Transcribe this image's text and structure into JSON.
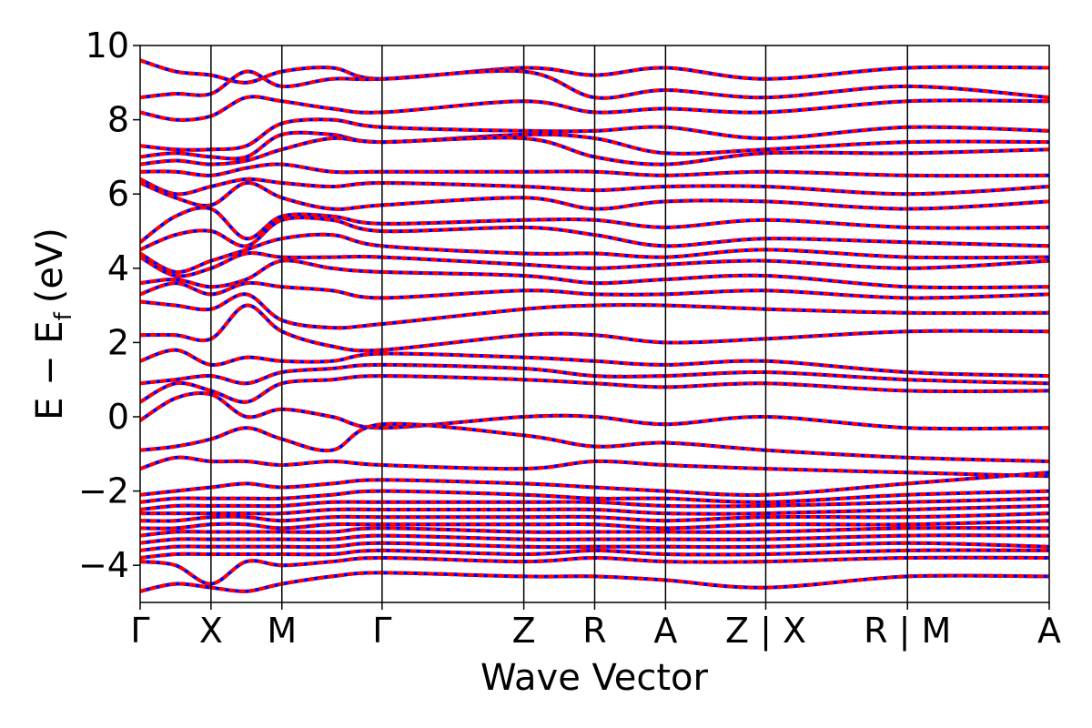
{
  "chart_data": {
    "type": "line",
    "xlabel": "Wave Vector",
    "ylabel_main": "E − E",
    "ylabel_sub": "f",
    "ylabel_unit": "(eV)",
    "ylim": [
      -5,
      10
    ],
    "yticks": [
      -4,
      -2,
      0,
      2,
      4,
      6,
      8,
      10
    ],
    "ytick_labels": [
      "−4",
      "−2",
      "0",
      "2",
      "4",
      "6",
      "8",
      "10"
    ],
    "kpoint_labels": [
      "Γ",
      "X",
      "M",
      "Γ",
      "Z",
      "R",
      "A",
      "Z | X",
      "R | M",
      "A"
    ],
    "kpoint_x": [
      0,
      0.5,
      1.0,
      1.707,
      2.707,
      3.207,
      3.707,
      4.414,
      5.414,
      6.414
    ],
    "segment_breaks": [
      4.414,
      5.414
    ],
    "xlim": [
      0,
      6.414
    ],
    "line_colors": {
      "dft": "#0000ff",
      "interp": "#ff0000"
    },
    "band_count": 60,
    "bands": [
      {
        "y": [
          9.6,
          9.3,
          9.2,
          9.0,
          9.3,
          9.4,
          9.1,
          9.4,
          9.2,
          9.4,
          9.1,
          9.4,
          9.4
        ]
      },
      {
        "y": [
          8.6,
          8.7,
          8.7,
          9.3,
          8.9,
          9.1,
          9.1,
          9.3,
          8.6,
          8.8,
          8.6,
          8.9,
          8.6
        ]
      },
      {
        "y": [
          8.2,
          8.0,
          8.1,
          8.6,
          8.5,
          8.3,
          8.2,
          8.5,
          8.2,
          8.3,
          8.2,
          8.5,
          8.5
        ]
      },
      {
        "y": [
          7.3,
          7.2,
          7.2,
          7.3,
          7.9,
          8.0,
          7.8,
          7.7,
          7.7,
          7.8,
          7.5,
          7.8,
          7.7
        ]
      },
      {
        "y": [
          7.0,
          7.1,
          7.0,
          7.0,
          7.6,
          7.6,
          7.4,
          7.6,
          7.5,
          7.1,
          7.2,
          7.4,
          7.4
        ]
      },
      {
        "y": [
          6.8,
          6.9,
          6.8,
          6.9,
          7.2,
          7.5,
          7.4,
          7.5,
          7.0,
          6.8,
          7.1,
          7.1,
          7.2
        ]
      },
      {
        "y": [
          6.6,
          6.6,
          6.5,
          6.7,
          6.8,
          6.6,
          6.6,
          6.6,
          6.6,
          6.5,
          6.6,
          6.5,
          6.5
        ]
      },
      {
        "y": [
          6.4,
          6.0,
          6.2,
          6.4,
          6.3,
          6.2,
          6.3,
          6.2,
          6.1,
          6.2,
          6.2,
          6.0,
          6.2
        ]
      },
      {
        "y": [
          6.3,
          5.9,
          5.7,
          6.3,
          5.9,
          5.6,
          5.7,
          5.9,
          5.6,
          5.8,
          5.8,
          5.6,
          5.8
        ]
      },
      {
        "y": [
          4.7,
          5.4,
          5.6,
          4.8,
          5.4,
          5.4,
          5.2,
          5.3,
          5.3,
          5.1,
          5.3,
          5.1,
          5.1
        ]
      },
      {
        "y": [
          4.5,
          4.9,
          5.0,
          4.6,
          5.3,
          5.3,
          5.0,
          5.1,
          4.9,
          4.6,
          4.8,
          4.7,
          4.6
        ]
      },
      {
        "y": [
          4.4,
          3.9,
          4.2,
          4.5,
          4.8,
          4.9,
          4.6,
          4.4,
          4.4,
          4.3,
          4.5,
          4.3,
          4.3
        ]
      },
      {
        "y": [
          4.3,
          3.8,
          4.0,
          4.4,
          4.3,
          4.3,
          4.3,
          4.1,
          4.0,
          4.1,
          4.2,
          4.0,
          4.2
        ]
      },
      {
        "y": [
          3.6,
          3.7,
          3.5,
          3.7,
          4.2,
          4.0,
          3.9,
          3.8,
          3.6,
          3.7,
          3.8,
          3.5,
          3.5
        ]
      },
      {
        "y": [
          3.3,
          3.6,
          3.3,
          3.6,
          3.5,
          3.4,
          3.2,
          3.4,
          3.3,
          3.3,
          3.4,
          3.2,
          3.3
        ]
      },
      {
        "y": [
          3.1,
          3.0,
          2.9,
          3.3,
          2.6,
          2.4,
          2.5,
          2.9,
          3.0,
          3.0,
          2.9,
          2.8,
          2.8
        ]
      },
      {
        "y": [
          2.2,
          2.2,
          2.1,
          3.0,
          2.3,
          1.9,
          1.8,
          2.2,
          2.2,
          2.0,
          2.1,
          2.3,
          2.3
        ]
      },
      {
        "y": [
          1.5,
          1.8,
          1.4,
          1.6,
          1.5,
          1.5,
          1.7,
          1.6,
          1.5,
          1.4,
          1.5,
          1.2,
          1.1
        ]
      },
      {
        "y": [
          0.9,
          1.0,
          1.1,
          0.9,
          1.2,
          1.3,
          1.4,
          1.3,
          1.1,
          1.1,
          1.2,
          1.0,
          0.9
        ]
      },
      {
        "y": [
          0.4,
          0.9,
          0.7,
          0.4,
          0.9,
          1.0,
          1.1,
          1.0,
          0.9,
          0.8,
          0.9,
          0.7,
          0.7
        ]
      },
      {
        "y": [
          -0.1,
          0.5,
          0.6,
          0.0,
          0.2,
          0.0,
          -0.3,
          0.0,
          0.0,
          -0.2,
          0.0,
          -0.3,
          -0.3
        ]
      },
      {
        "y": [
          -0.9,
          -0.8,
          -0.6,
          -0.3,
          -0.6,
          -0.9,
          -0.2,
          -0.5,
          -0.8,
          -0.7,
          -0.9,
          -1.1,
          -1.2
        ]
      },
      {
        "y": [
          -1.4,
          -1.1,
          -1.2,
          -1.2,
          -1.3,
          -1.2,
          -1.3,
          -1.4,
          -1.2,
          -1.3,
          -1.4,
          -1.5,
          -1.6
        ]
      },
      {
        "y": [
          -2.1,
          -2.0,
          -1.9,
          -1.8,
          -1.9,
          -1.8,
          -1.7,
          -1.8,
          -1.9,
          -2.0,
          -2.1,
          -1.8,
          -1.5
        ]
      },
      {
        "y": [
          -2.3,
          -2.2,
          -2.2,
          -2.2,
          -2.2,
          -2.1,
          -2.0,
          -2.1,
          -2.2,
          -2.2,
          -2.3,
          -2.1,
          -2.0
        ]
      },
      {
        "y": [
          -2.5,
          -2.4,
          -2.4,
          -2.4,
          -2.4,
          -2.3,
          -2.3,
          -2.3,
          -2.3,
          -2.4,
          -2.4,
          -2.3,
          -2.2
        ]
      },
      {
        "y": [
          -2.6,
          -2.6,
          -2.6,
          -2.6,
          -2.6,
          -2.5,
          -2.5,
          -2.5,
          -2.5,
          -2.6,
          -2.6,
          -2.5,
          -2.4
        ]
      },
      {
        "y": [
          -2.8,
          -2.8,
          -2.7,
          -2.7,
          -2.8,
          -2.7,
          -2.7,
          -2.7,
          -2.7,
          -2.8,
          -2.7,
          -2.7,
          -2.6
        ]
      },
      {
        "y": [
          -3.0,
          -3.0,
          -2.9,
          -2.9,
          -3.0,
          -2.9,
          -2.9,
          -2.9,
          -2.9,
          -3.0,
          -2.9,
          -2.9,
          -2.8
        ]
      },
      {
        "y": [
          -3.2,
          -3.1,
          -3.1,
          -3.1,
          -3.1,
          -3.1,
          -3.0,
          -3.1,
          -3.1,
          -3.1,
          -3.1,
          -3.0,
          -3.0
        ]
      },
      {
        "y": [
          -3.4,
          -3.3,
          -3.3,
          -3.3,
          -3.3,
          -3.3,
          -3.2,
          -3.3,
          -3.3,
          -3.3,
          -3.3,
          -3.2,
          -3.2
        ]
      },
      {
        "y": [
          -3.6,
          -3.5,
          -3.5,
          -3.5,
          -3.5,
          -3.5,
          -3.4,
          -3.5,
          -3.5,
          -3.5,
          -3.5,
          -3.4,
          -3.5
        ]
      },
      {
        "y": [
          -3.8,
          -3.7,
          -3.7,
          -3.7,
          -3.7,
          -3.7,
          -3.6,
          -3.7,
          -3.6,
          -3.7,
          -3.7,
          -3.6,
          -3.6
        ]
      },
      {
        "y": [
          -3.9,
          -4.0,
          -4.5,
          -3.9,
          -4.0,
          -3.9,
          -3.8,
          -3.9,
          -3.8,
          -3.9,
          -3.9,
          -3.8,
          -3.8
        ]
      },
      {
        "y": [
          -4.7,
          -4.5,
          -4.6,
          -4.7,
          -4.5,
          -4.3,
          -4.2,
          -4.3,
          -4.3,
          -4.4,
          -4.6,
          -4.3,
          -4.3
        ]
      }
    ]
  }
}
